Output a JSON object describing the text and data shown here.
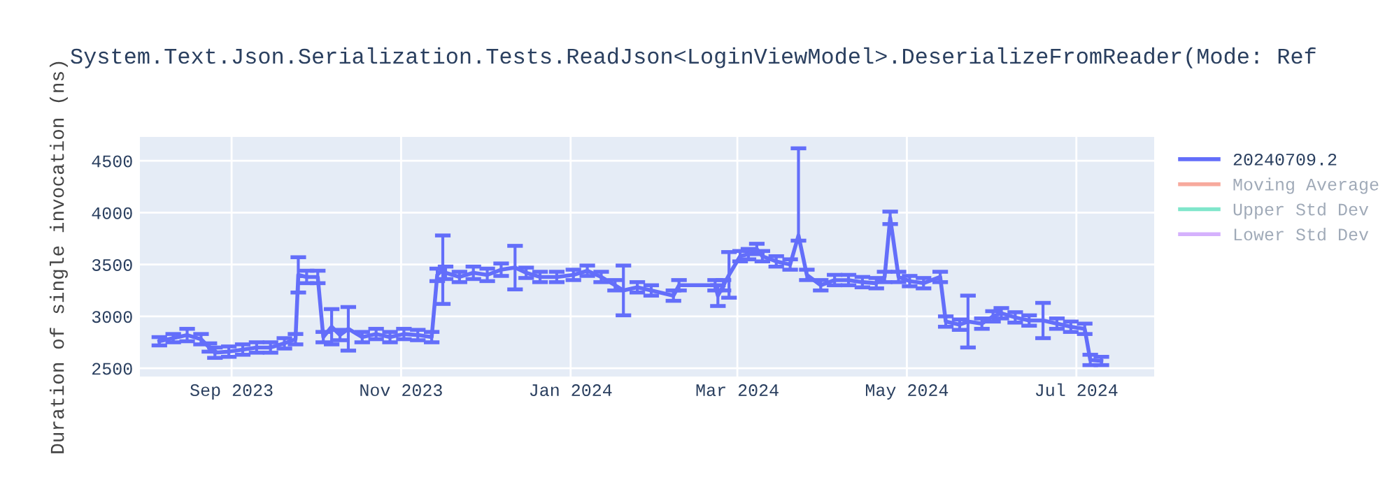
{
  "chart_data": {
    "type": "line",
    "title": "System.Text.Json.Serialization.Tests.ReadJson<LoginViewModel>.DeserializeFromReader(Mode: Ref",
    "ylabel": "Duration of single invocation (ns)",
    "x": [
      "2023-08-06",
      "2023-08-11",
      "2023-08-16",
      "2023-08-21",
      "2023-08-24",
      "2023-08-26",
      "2023-08-31",
      "2023-09-05",
      "2023-09-10",
      "2023-09-15",
      "2023-09-20",
      "2023-09-24",
      "2023-09-25",
      "2023-09-28",
      "2023-10-02",
      "2023-10-04",
      "2023-10-07",
      "2023-10-10",
      "2023-10-13",
      "2023-10-18",
      "2023-10-23",
      "2023-10-28",
      "2023-11-02",
      "2023-11-07",
      "2023-11-12",
      "2023-11-14",
      "2023-11-16",
      "2023-11-17",
      "2023-11-22",
      "2023-11-27",
      "2023-12-02",
      "2023-12-07",
      "2023-12-12",
      "2023-12-16",
      "2023-12-21",
      "2023-12-27",
      "2024-01-02",
      "2024-01-07",
      "2024-01-12",
      "2024-01-17",
      "2024-01-20",
      "2024-01-25",
      "2024-01-30",
      "2024-02-07",
      "2024-02-09",
      "2024-02-22",
      "2024-02-23",
      "2024-02-25",
      "2024-02-27",
      "2024-03-02",
      "2024-03-05",
      "2024-03-08",
      "2024-03-10",
      "2024-03-15",
      "2024-03-20",
      "2024-03-23",
      "2024-03-26",
      "2024-03-31",
      "2024-04-05",
      "2024-04-10",
      "2024-04-15",
      "2024-04-20",
      "2024-04-23",
      "2024-04-25",
      "2024-04-28",
      "2024-05-02",
      "2024-05-07",
      "2024-05-13",
      "2024-05-15",
      "2024-05-20",
      "2024-05-23",
      "2024-05-28",
      "2024-06-01",
      "2024-06-04",
      "2024-06-09",
      "2024-06-14",
      "2024-06-19",
      "2024-06-24",
      "2024-06-29",
      "2024-07-04",
      "2024-07-06",
      "2024-07-10"
    ],
    "series": [
      {
        "name": "20240709.2",
        "color": "#636efa",
        "values": [
          2760,
          2790,
          2820,
          2780,
          2700,
          2650,
          2660,
          2680,
          2700,
          2700,
          2740,
          2780,
          3400,
          3380,
          3380,
          2800,
          2900,
          2820,
          2880,
          2800,
          2830,
          2800,
          2830,
          2820,
          2800,
          3400,
          3450,
          3420,
          3380,
          3420,
          3400,
          3450,
          3470,
          3420,
          3380,
          3380,
          3400,
          3440,
          3380,
          3300,
          3250,
          3280,
          3250,
          3200,
          3300,
          3300,
          3200,
          3300,
          3400,
          3580,
          3600,
          3650,
          3580,
          3530,
          3500,
          3780,
          3400,
          3300,
          3350,
          3350,
          3330,
          3320,
          3380,
          3950,
          3380,
          3340,
          3320,
          3380,
          2950,
          2920,
          2950,
          2930,
          3000,
          3030,
          2990,
          2960,
          2960,
          2930,
          2900,
          2880,
          2580,
          2570
        ],
        "errors": [
          40,
          40,
          60,
          50,
          40,
          50,
          50,
          50,
          50,
          50,
          50,
          50,
          170,
          60,
          60,
          50,
          170,
          50,
          210,
          50,
          50,
          50,
          50,
          50,
          50,
          60,
          330,
          60,
          50,
          60,
          60,
          60,
          210,
          50,
          50,
          50,
          50,
          50,
          50,
          50,
          240,
          50,
          50,
          50,
          50,
          50,
          100,
          50,
          220,
          50,
          50,
          50,
          50,
          50,
          50,
          [
            3730,
            4620
          ],
          50,
          50,
          50,
          50,
          50,
          50,
          50,
          60,
          50,
          50,
          50,
          50,
          50,
          50,
          250,
          50,
          50,
          50,
          50,
          50,
          170,
          50,
          50,
          50,
          50,
          40
        ]
      },
      {
        "name": "Moving Average",
        "color": "#f7aa9d",
        "values": [
          null,
          null,
          null,
          null,
          null,
          null,
          null,
          null,
          null,
          null,
          null,
          null,
          null,
          null,
          null,
          null,
          null,
          null,
          null,
          null,
          null,
          null,
          null,
          null,
          null,
          null,
          null,
          null,
          null,
          null,
          null,
          null,
          null,
          null,
          null,
          null,
          null,
          null,
          null,
          null,
          null,
          null,
          null,
          null,
          null,
          null,
          null,
          null,
          null,
          null,
          null,
          null,
          null,
          null,
          null,
          null,
          null,
          null,
          null,
          null,
          null,
          null,
          null,
          null,
          null,
          null,
          null,
          null,
          null,
          null,
          null,
          null,
          null,
          null,
          null,
          null,
          null,
          null,
          null,
          null,
          null,
          null
        ]
      },
      {
        "name": "Upper Std Dev",
        "color": "#80e6cb",
        "values": [
          null,
          null,
          null,
          null,
          null,
          null,
          null,
          null,
          null,
          null,
          null,
          null,
          null,
          null,
          null,
          null,
          null,
          null,
          null,
          null,
          null,
          null,
          null,
          null,
          null,
          null,
          null,
          null,
          null,
          null,
          null,
          null,
          null,
          null,
          null,
          null,
          null,
          null,
          null,
          null,
          null,
          null,
          null,
          null,
          null,
          null,
          null,
          null,
          null,
          null,
          null,
          null,
          null,
          null,
          null,
          null,
          null,
          null,
          null,
          null,
          null,
          null,
          null,
          null,
          null,
          null,
          null,
          null,
          null,
          null,
          null,
          null,
          null,
          null,
          null,
          null,
          null,
          null,
          null,
          null,
          null,
          null
        ]
      },
      {
        "name": "Lower Std Dev",
        "color": "#d5b1fd",
        "values": [
          null,
          null,
          null,
          null,
          null,
          null,
          null,
          null,
          null,
          null,
          null,
          null,
          null,
          null,
          null,
          null,
          null,
          null,
          null,
          null,
          null,
          null,
          null,
          null,
          null,
          null,
          null,
          null,
          null,
          null,
          null,
          null,
          null,
          null,
          null,
          null,
          null,
          null,
          null,
          null,
          null,
          null,
          null,
          null,
          null,
          null,
          null,
          null,
          null,
          null,
          null,
          null,
          null,
          null,
          null,
          null,
          null,
          null,
          null,
          null,
          null,
          null,
          null,
          null,
          null,
          null,
          null,
          null,
          null,
          null,
          null,
          null,
          null,
          null,
          null,
          null,
          null,
          null,
          null,
          null,
          null,
          null
        ]
      }
    ],
    "xlim": [
      "2023-07-30",
      "2024-07-29"
    ],
    "xticks": [
      {
        "value": "2023-09-01",
        "label": "Sep 2023"
      },
      {
        "value": "2023-11-01",
        "label": "Nov 2023"
      },
      {
        "value": "2024-01-01",
        "label": "Jan 2024"
      },
      {
        "value": "2024-03-01",
        "label": "Mar 2024"
      },
      {
        "value": "2024-05-01",
        "label": "May 2024"
      },
      {
        "value": "2024-07-01",
        "label": "Jul 2024"
      }
    ],
    "ylim": [
      2420,
      4730
    ],
    "yticks": [
      2500,
      3000,
      3500,
      4000,
      4500
    ],
    "grid": true,
    "legend": "right"
  }
}
